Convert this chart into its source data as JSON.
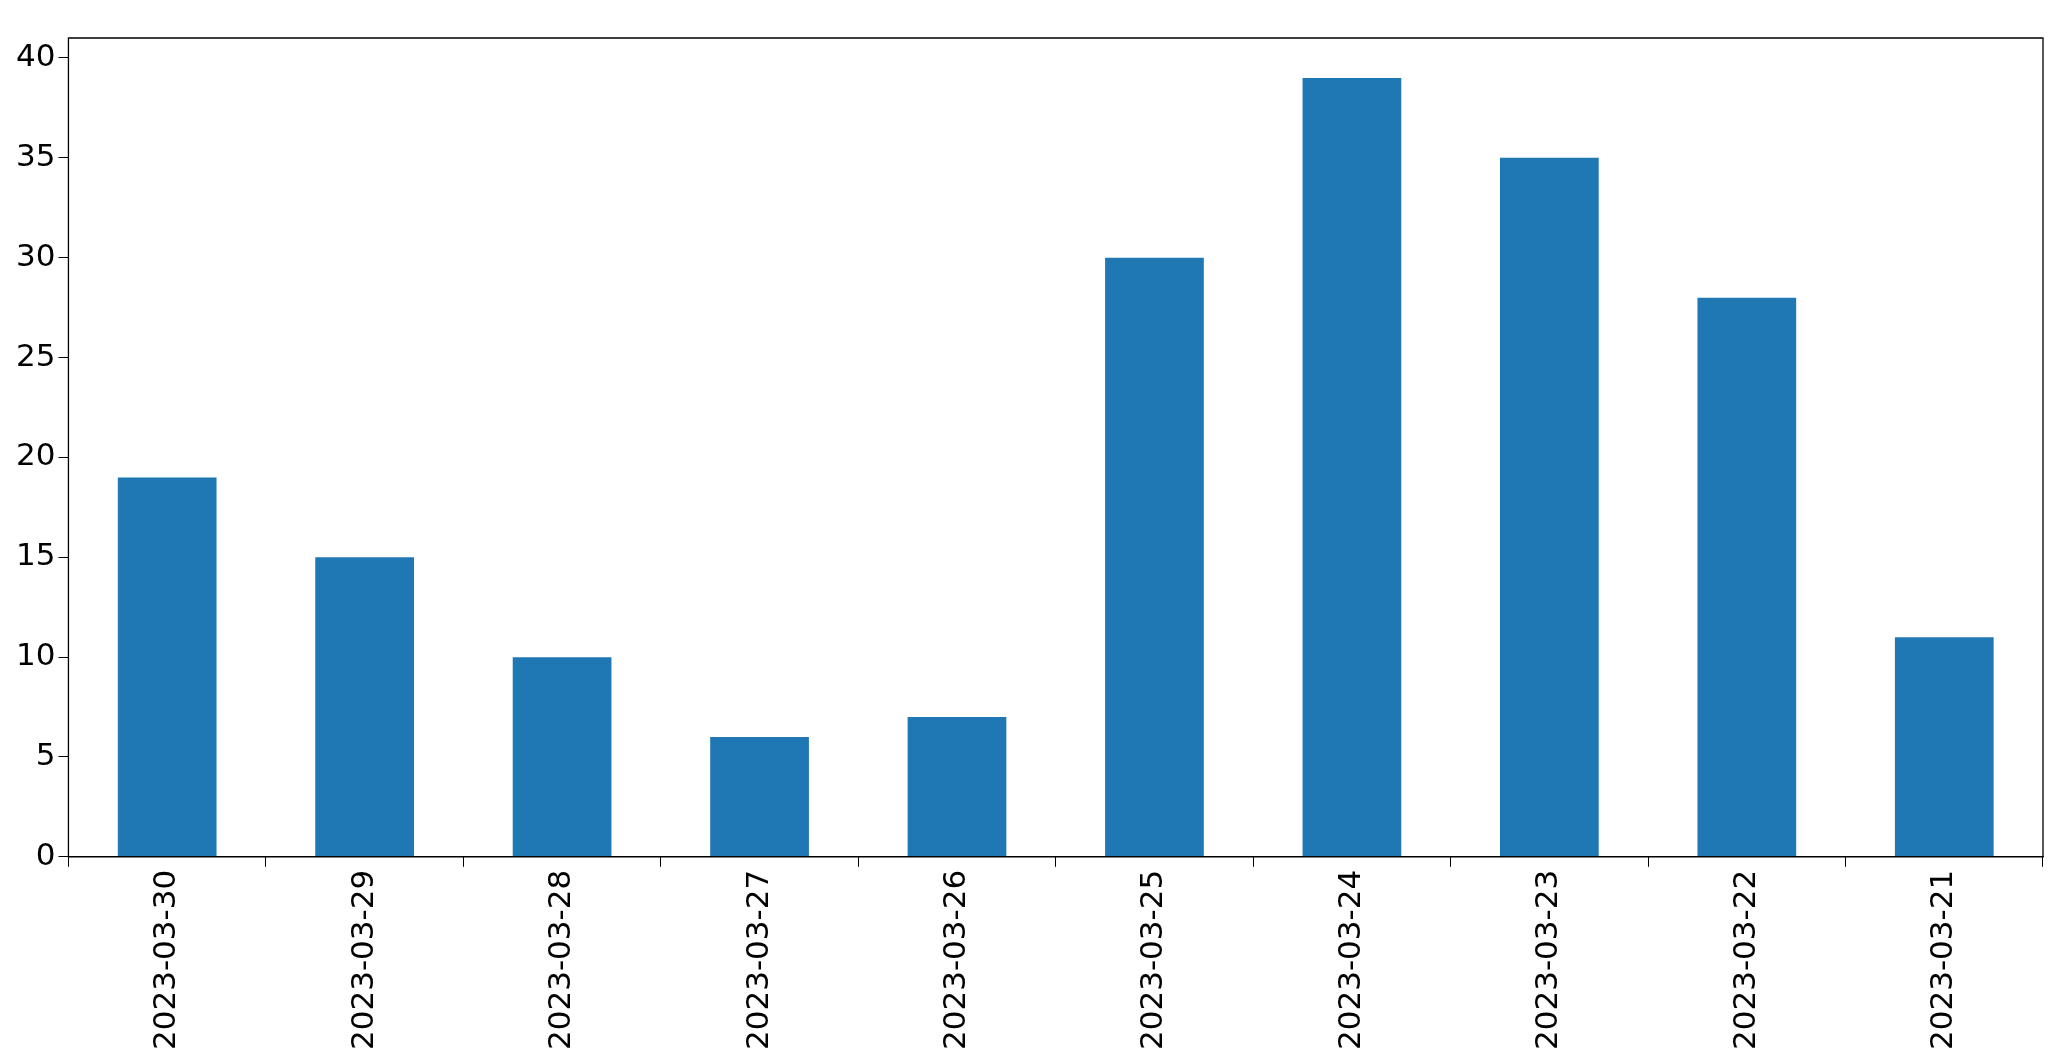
{
  "chart_data": {
    "type": "bar",
    "categories": [
      "2023-03-30",
      "2023-03-29",
      "2023-03-28",
      "2023-03-27",
      "2023-03-26",
      "2023-03-25",
      "2023-03-24",
      "2023-03-23",
      "2023-03-22",
      "2023-03-21"
    ],
    "values": [
      19,
      15,
      10,
      6,
      7,
      30,
      39,
      35,
      28,
      11
    ],
    "color": "#1f77b4",
    "ylim": [
      0,
      41
    ],
    "yticks": [
      0,
      5,
      10,
      15,
      20,
      25,
      30,
      35,
      40
    ]
  }
}
